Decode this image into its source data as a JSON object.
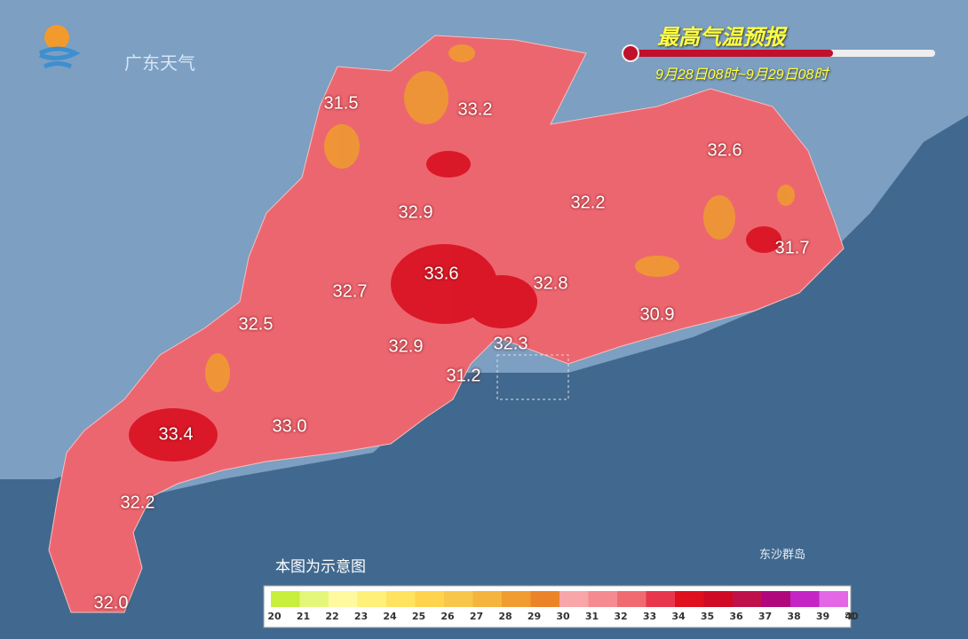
{
  "logo": {
    "text": "广东天气"
  },
  "header": {
    "title": "最高气温预报",
    "period": "9月28日08时~9月29日08时"
  },
  "map": {
    "labels": [
      "31.5",
      "33.2",
      "32.6",
      "32.9",
      "32.2",
      "31.7",
      "33.6",
      "32.8",
      "32.7",
      "32.5",
      "30.9",
      "32.9",
      "32.3",
      "31.2",
      "33.4",
      "33.0",
      "32.2",
      "32.0"
    ],
    "islands": "东沙群岛",
    "note": "本图为示意图"
  },
  "legend": {
    "ticks": [
      20,
      21,
      22,
      23,
      24,
      25,
      26,
      27,
      28,
      29,
      30,
      31,
      32,
      33,
      34,
      35,
      36,
      37,
      38,
      39,
      40
    ],
    "unit": "℃",
    "colors": [
      "#c8ef3c",
      "#e4f77a",
      "#fff9a0",
      "#fff07a",
      "#ffe25e",
      "#ffd34c",
      "#f8c64a",
      "#f4b43e",
      "#f09c30",
      "#eb8428",
      "#f9a6a8",
      "#f58a90",
      "#f06a72",
      "#e8374c",
      "#e0101e",
      "#cf0a24",
      "#c0104c",
      "#b0087c",
      "#c426c4",
      "#e468e6"
    ]
  }
}
